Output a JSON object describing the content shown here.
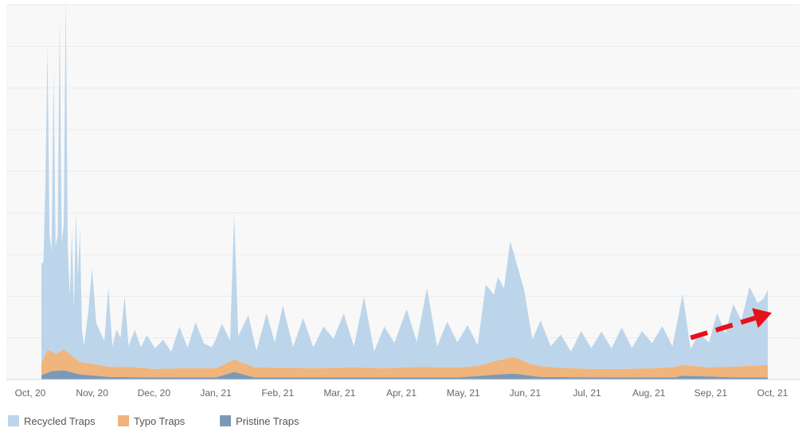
{
  "chart_data": {
    "type": "area",
    "stacked": true,
    "title": "",
    "xlabel": "",
    "ylabel": "",
    "x_ticks": [
      "Oct, 20",
      "Nov, 20",
      "Dec, 20",
      "Jan, 21",
      "Feb, 21",
      "Mar, 21",
      "Apr, 21",
      "May, 21",
      "Jun, 21",
      "Jul, 21",
      "Aug, 21",
      "Sep, 21",
      "Oct, 21"
    ],
    "x_range": [
      "2020-10-01",
      "2021-10-01"
    ],
    "data_range": [
      "2020-10-07",
      "2021-09-30"
    ],
    "ylim": [
      0,
      9
    ],
    "y_tick_labels_shown": false,
    "grid": "horizontal",
    "legend_position": "bottom-left",
    "series": [
      {
        "name": "Recycled Traps",
        "color": "#bcd5ea",
        "keypoints": [
          [
            "2020-10-07",
            2.4
          ],
          [
            "2020-10-08",
            2.3
          ],
          [
            "2020-10-09",
            4.2
          ],
          [
            "2020-10-10",
            7.3
          ],
          [
            "2020-10-11",
            2.8
          ],
          [
            "2020-10-12",
            2.4
          ],
          [
            "2020-10-13",
            6.8
          ],
          [
            "2020-10-14",
            2.6
          ],
          [
            "2020-10-15",
            2.8
          ],
          [
            "2020-10-16",
            8.0
          ],
          [
            "2020-10-17",
            2.6
          ],
          [
            "2020-10-18",
            3.0
          ],
          [
            "2020-10-19",
            8.5
          ],
          [
            "2020-10-20",
            2.5
          ],
          [
            "2020-10-21",
            1.4
          ],
          [
            "2020-10-22",
            3.0
          ],
          [
            "2020-10-23",
            1.2
          ],
          [
            "2020-10-24",
            3.5
          ],
          [
            "2020-10-25",
            2.0
          ],
          [
            "2020-10-26",
            3.2
          ],
          [
            "2020-10-27",
            0.8
          ],
          [
            "2020-10-28",
            0.4
          ],
          [
            "2020-10-30",
            1.2
          ],
          [
            "2020-11-01",
            2.3
          ],
          [
            "2020-11-03",
            1.0
          ],
          [
            "2020-11-05",
            0.8
          ],
          [
            "2020-11-07",
            0.6
          ],
          [
            "2020-11-09",
            1.9
          ],
          [
            "2020-11-11",
            0.5
          ],
          [
            "2020-11-13",
            0.9
          ],
          [
            "2020-11-15",
            0.7
          ],
          [
            "2020-11-17",
            1.7
          ],
          [
            "2020-11-19",
            0.5
          ],
          [
            "2020-11-22",
            0.9
          ],
          [
            "2020-11-25",
            0.5
          ],
          [
            "2020-11-28",
            0.8
          ],
          [
            "2020-12-02",
            0.5
          ],
          [
            "2020-12-06",
            0.7
          ],
          [
            "2020-12-10",
            0.4
          ],
          [
            "2020-12-14",
            1.0
          ],
          [
            "2020-12-18",
            0.5
          ],
          [
            "2020-12-22",
            1.1
          ],
          [
            "2020-12-26",
            0.6
          ],
          [
            "2020-12-30",
            0.5
          ],
          [
            "2021-01-04",
            1.0
          ],
          [
            "2021-01-08",
            0.5
          ],
          [
            "2021-01-10",
            3.5
          ],
          [
            "2021-01-12",
            0.6
          ],
          [
            "2021-01-17",
            1.2
          ],
          [
            "2021-01-21",
            0.4
          ],
          [
            "2021-01-26",
            1.3
          ],
          [
            "2021-01-30",
            0.6
          ],
          [
            "2021-02-03",
            1.5
          ],
          [
            "2021-02-08",
            0.5
          ],
          [
            "2021-02-13",
            1.2
          ],
          [
            "2021-02-18",
            0.5
          ],
          [
            "2021-02-23",
            1.0
          ],
          [
            "2021-02-28",
            0.7
          ],
          [
            "2021-03-05",
            1.3
          ],
          [
            "2021-03-10",
            0.5
          ],
          [
            "2021-03-15",
            1.7
          ],
          [
            "2021-03-20",
            0.4
          ],
          [
            "2021-03-25",
            1.0
          ],
          [
            "2021-03-30",
            0.6
          ],
          [
            "2021-04-05",
            1.4
          ],
          [
            "2021-04-10",
            0.6
          ],
          [
            "2021-04-15",
            1.9
          ],
          [
            "2021-04-20",
            0.5
          ],
          [
            "2021-04-25",
            1.1
          ],
          [
            "2021-04-30",
            0.6
          ],
          [
            "2021-05-05",
            1.0
          ],
          [
            "2021-05-10",
            0.5
          ],
          [
            "2021-05-14",
            1.9
          ],
          [
            "2021-05-18",
            1.6
          ],
          [
            "2021-05-20",
            2.0
          ],
          [
            "2021-05-23",
            1.7
          ],
          [
            "2021-05-26",
            2.8
          ],
          [
            "2021-05-29",
            2.3
          ],
          [
            "2021-06-02",
            1.7
          ],
          [
            "2021-06-06",
            0.6
          ],
          [
            "2021-06-10",
            1.1
          ],
          [
            "2021-06-15",
            0.5
          ],
          [
            "2021-06-20",
            0.8
          ],
          [
            "2021-06-25",
            0.4
          ],
          [
            "2021-06-30",
            0.9
          ],
          [
            "2021-07-05",
            0.5
          ],
          [
            "2021-07-10",
            0.9
          ],
          [
            "2021-07-15",
            0.5
          ],
          [
            "2021-07-20",
            1.0
          ],
          [
            "2021-07-25",
            0.5
          ],
          [
            "2021-07-30",
            0.9
          ],
          [
            "2021-08-04",
            0.6
          ],
          [
            "2021-08-09",
            1.0
          ],
          [
            "2021-08-14",
            0.5
          ],
          [
            "2021-08-19",
            1.7
          ],
          [
            "2021-08-23",
            0.4
          ],
          [
            "2021-08-27",
            0.8
          ],
          [
            "2021-09-01",
            0.6
          ],
          [
            "2021-09-05",
            1.3
          ],
          [
            "2021-09-09",
            0.8
          ],
          [
            "2021-09-13",
            1.5
          ],
          [
            "2021-09-17",
            1.1
          ],
          [
            "2021-09-21",
            1.9
          ],
          [
            "2021-09-25",
            1.5
          ],
          [
            "2021-09-28",
            1.6
          ],
          [
            "2021-09-30",
            1.8
          ]
        ]
      },
      {
        "name": "Typo Traps",
        "color": "#f0b47d",
        "keypoints": [
          [
            "2020-10-07",
            0.3
          ],
          [
            "2020-10-10",
            0.55
          ],
          [
            "2020-10-14",
            0.4
          ],
          [
            "2020-10-18",
            0.5
          ],
          [
            "2020-10-22",
            0.4
          ],
          [
            "2020-10-26",
            0.3
          ],
          [
            "2020-11-01",
            0.28
          ],
          [
            "2020-11-10",
            0.24
          ],
          [
            "2020-11-20",
            0.25
          ],
          [
            "2020-12-01",
            0.2
          ],
          [
            "2020-12-15",
            0.22
          ],
          [
            "2021-01-01",
            0.22
          ],
          [
            "2021-01-10",
            0.3
          ],
          [
            "2021-01-20",
            0.24
          ],
          [
            "2021-02-05",
            0.23
          ],
          [
            "2021-02-20",
            0.22
          ],
          [
            "2021-03-10",
            0.24
          ],
          [
            "2021-03-25",
            0.22
          ],
          [
            "2021-04-10",
            0.25
          ],
          [
            "2021-04-25",
            0.24
          ],
          [
            "2021-05-10",
            0.24
          ],
          [
            "2021-05-20",
            0.34
          ],
          [
            "2021-05-28",
            0.4
          ],
          [
            "2021-06-05",
            0.28
          ],
          [
            "2021-06-20",
            0.22
          ],
          [
            "2021-07-05",
            0.2
          ],
          [
            "2021-07-20",
            0.2
          ],
          [
            "2021-08-05",
            0.22
          ],
          [
            "2021-08-19",
            0.26
          ],
          [
            "2021-09-01",
            0.22
          ],
          [
            "2021-09-15",
            0.26
          ],
          [
            "2021-09-30",
            0.3
          ]
        ]
      },
      {
        "name": "Pristine Traps",
        "color": "#7b9ab7",
        "keypoints": [
          [
            "2020-10-07",
            0.1
          ],
          [
            "2020-10-12",
            0.2
          ],
          [
            "2020-10-18",
            0.22
          ],
          [
            "2020-10-26",
            0.12
          ],
          [
            "2020-11-10",
            0.06
          ],
          [
            "2020-12-01",
            0.05
          ],
          [
            "2021-01-01",
            0.05
          ],
          [
            "2021-01-10",
            0.18
          ],
          [
            "2021-01-20",
            0.05
          ],
          [
            "2021-03-01",
            0.05
          ],
          [
            "2021-04-01",
            0.05
          ],
          [
            "2021-05-01",
            0.05
          ],
          [
            "2021-05-20",
            0.12
          ],
          [
            "2021-05-28",
            0.14
          ],
          [
            "2021-06-10",
            0.06
          ],
          [
            "2021-07-15",
            0.05
          ],
          [
            "2021-08-15",
            0.05
          ],
          [
            "2021-08-19",
            0.09
          ],
          [
            "2021-09-15",
            0.05
          ],
          [
            "2021-09-30",
            0.05
          ]
        ]
      }
    ],
    "annotation": {
      "type": "dashed-arrow",
      "color": "#e8101a",
      "from": [
        "2021-08-23",
        1.0
      ],
      "to": [
        "2021-10-02",
        1.6
      ]
    }
  },
  "legend": {
    "items": [
      {
        "label": "Recycled Traps",
        "color": "#bcd5ea"
      },
      {
        "label": "Typo Traps",
        "color": "#f0b47d"
      },
      {
        "label": "Pristine Traps",
        "color": "#7b9ab7"
      }
    ]
  }
}
